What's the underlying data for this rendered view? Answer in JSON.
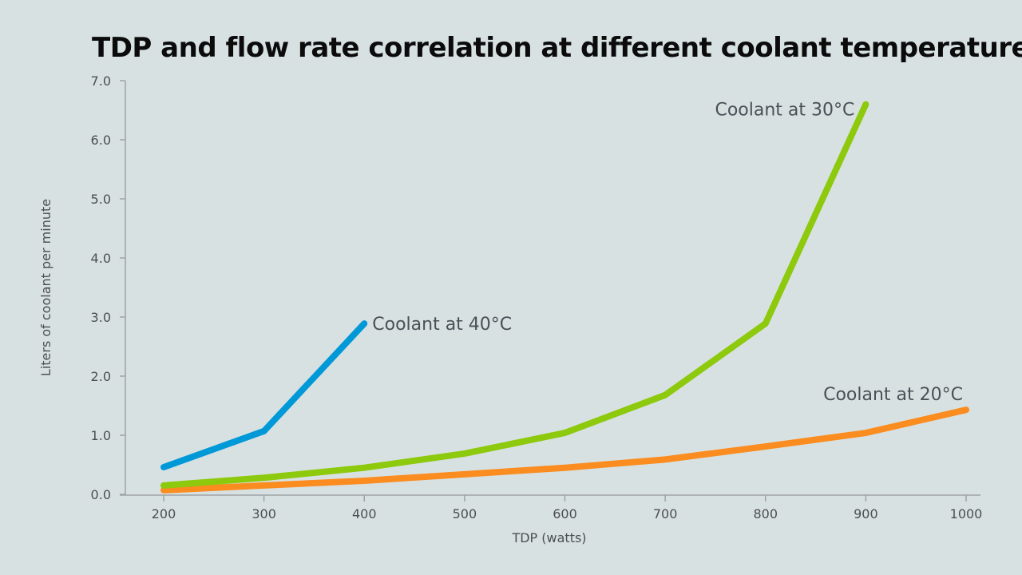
{
  "chart_data": {
    "type": "line",
    "title": "TDP and flow rate correlation at different coolant temperatures",
    "xlabel": "TDP (watts)",
    "ylabel": "Liters of coolant per minute",
    "xlim": [
      200,
      1000
    ],
    "ylim": [
      0,
      7
    ],
    "x_ticks": [
      "200",
      "300",
      "400",
      "500",
      "600",
      "700",
      "800",
      "900",
      "1000"
    ],
    "y_ticks": [
      "0.0",
      "1.0",
      "2.0",
      "3.0",
      "4.0",
      "5.0",
      "6.0",
      "7.0"
    ],
    "grid": false,
    "legend": "inline labels at line ends",
    "series": [
      {
        "name": "Coolant at 40°C",
        "color": "#0099d8",
        "x": [
          200,
          300,
          400
        ],
        "y": [
          0.46,
          1.07,
          2.89
        ]
      },
      {
        "name": "Coolant at 30°C",
        "color": "#8dc90c",
        "x": [
          200,
          300,
          400,
          500,
          600,
          700,
          800,
          900
        ],
        "y": [
          0.15,
          0.28,
          0.45,
          0.69,
          1.04,
          1.68,
          2.89,
          6.6
        ]
      },
      {
        "name": "Coolant at 20°C",
        "color": "#fb8c1f",
        "x": [
          200,
          300,
          400,
          500,
          600,
          700,
          800,
          900,
          1000
        ],
        "y": [
          0.07,
          0.15,
          0.23,
          0.34,
          0.45,
          0.59,
          0.81,
          1.04,
          1.43
        ]
      }
    ]
  }
}
